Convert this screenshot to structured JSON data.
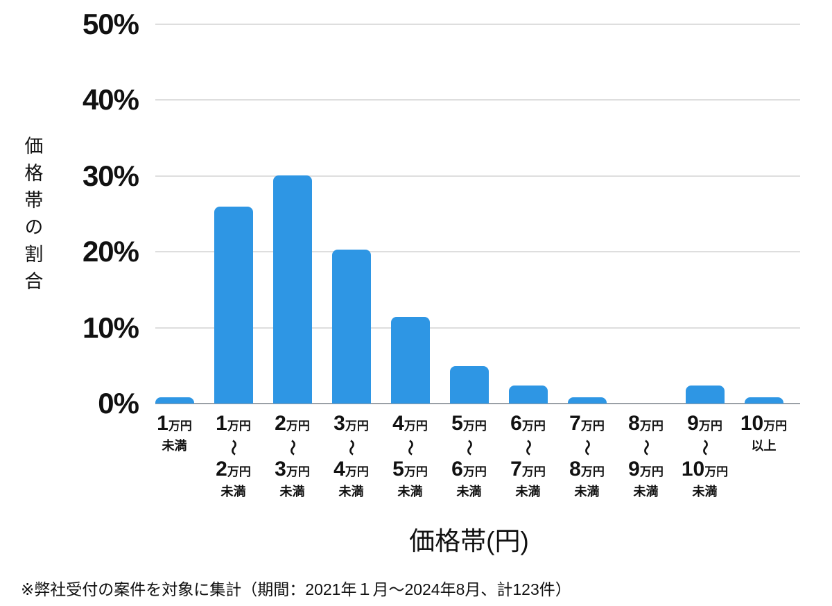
{
  "chart_data": {
    "type": "bar",
    "title": "",
    "categories": [
      "1万円未満",
      "1万円〜2万円未満",
      "2万円〜3万円未満",
      "3万円〜4万円未満",
      "4万円〜5万円未満",
      "5万円〜6万円未満",
      "6万円〜7万円未満",
      "7万円〜8万円未満",
      "8万円〜9万円未満",
      "9万円〜10万円未満",
      "10万円以上"
    ],
    "values": [
      0.8,
      26.0,
      30.1,
      20.3,
      11.4,
      4.9,
      2.4,
      0.8,
      0,
      2.4,
      0.8
    ],
    "xlabel": "価格帯(円)",
    "ylabel": "価格帯の割合",
    "ylim": [
      0,
      50
    ],
    "yticks": [
      {
        "label": "50%",
        "value": 50
      },
      {
        "label": "40%",
        "value": 40
      },
      {
        "label": "30%",
        "value": 30
      },
      {
        "label": "20%",
        "value": 20
      },
      {
        "label": "10%",
        "value": 10
      },
      {
        "label": "0%",
        "value": 0
      }
    ],
    "grid": true,
    "legend": false,
    "bar_color": "#2E96E4",
    "gridline_color": "#DEDEDE",
    "baseline_color": "#9AA0A6"
  },
  "x_tick_labels": [
    {
      "num1": "1",
      "unit1": "万円",
      "wave": "",
      "num2": "",
      "unit2": "",
      "suffix": "未満"
    },
    {
      "num1": "1",
      "unit1": "万円",
      "wave": "〜",
      "num2": "2",
      "unit2": "万円",
      "suffix": "未満"
    },
    {
      "num1": "2",
      "unit1": "万円",
      "wave": "〜",
      "num2": "3",
      "unit2": "万円",
      "suffix": "未満"
    },
    {
      "num1": "3",
      "unit1": "万円",
      "wave": "〜",
      "num2": "4",
      "unit2": "万円",
      "suffix": "未満"
    },
    {
      "num1": "4",
      "unit1": "万円",
      "wave": "〜",
      "num2": "5",
      "unit2": "万円",
      "suffix": "未満"
    },
    {
      "num1": "5",
      "unit1": "万円",
      "wave": "〜",
      "num2": "6",
      "unit2": "万円",
      "suffix": "未満"
    },
    {
      "num1": "6",
      "unit1": "万円",
      "wave": "〜",
      "num2": "7",
      "unit2": "万円",
      "suffix": "未満"
    },
    {
      "num1": "7",
      "unit1": "万円",
      "wave": "〜",
      "num2": "8",
      "unit2": "万円",
      "suffix": "未満"
    },
    {
      "num1": "8",
      "unit1": "万円",
      "wave": "〜",
      "num2": "9",
      "unit2": "万円",
      "suffix": "未満"
    },
    {
      "num1": "9",
      "unit1": "万円",
      "wave": "〜",
      "num2": "10",
      "unit2": "万円",
      "suffix": "未満"
    },
    {
      "num1": "10",
      "unit1": "万円",
      "wave": "",
      "num2": "",
      "unit2": "",
      "suffix": "以上"
    }
  ],
  "footer": {
    "note": "※弊社受付の案件を対象に集計（期間：2021年１月～2024年8月、計123件）"
  }
}
